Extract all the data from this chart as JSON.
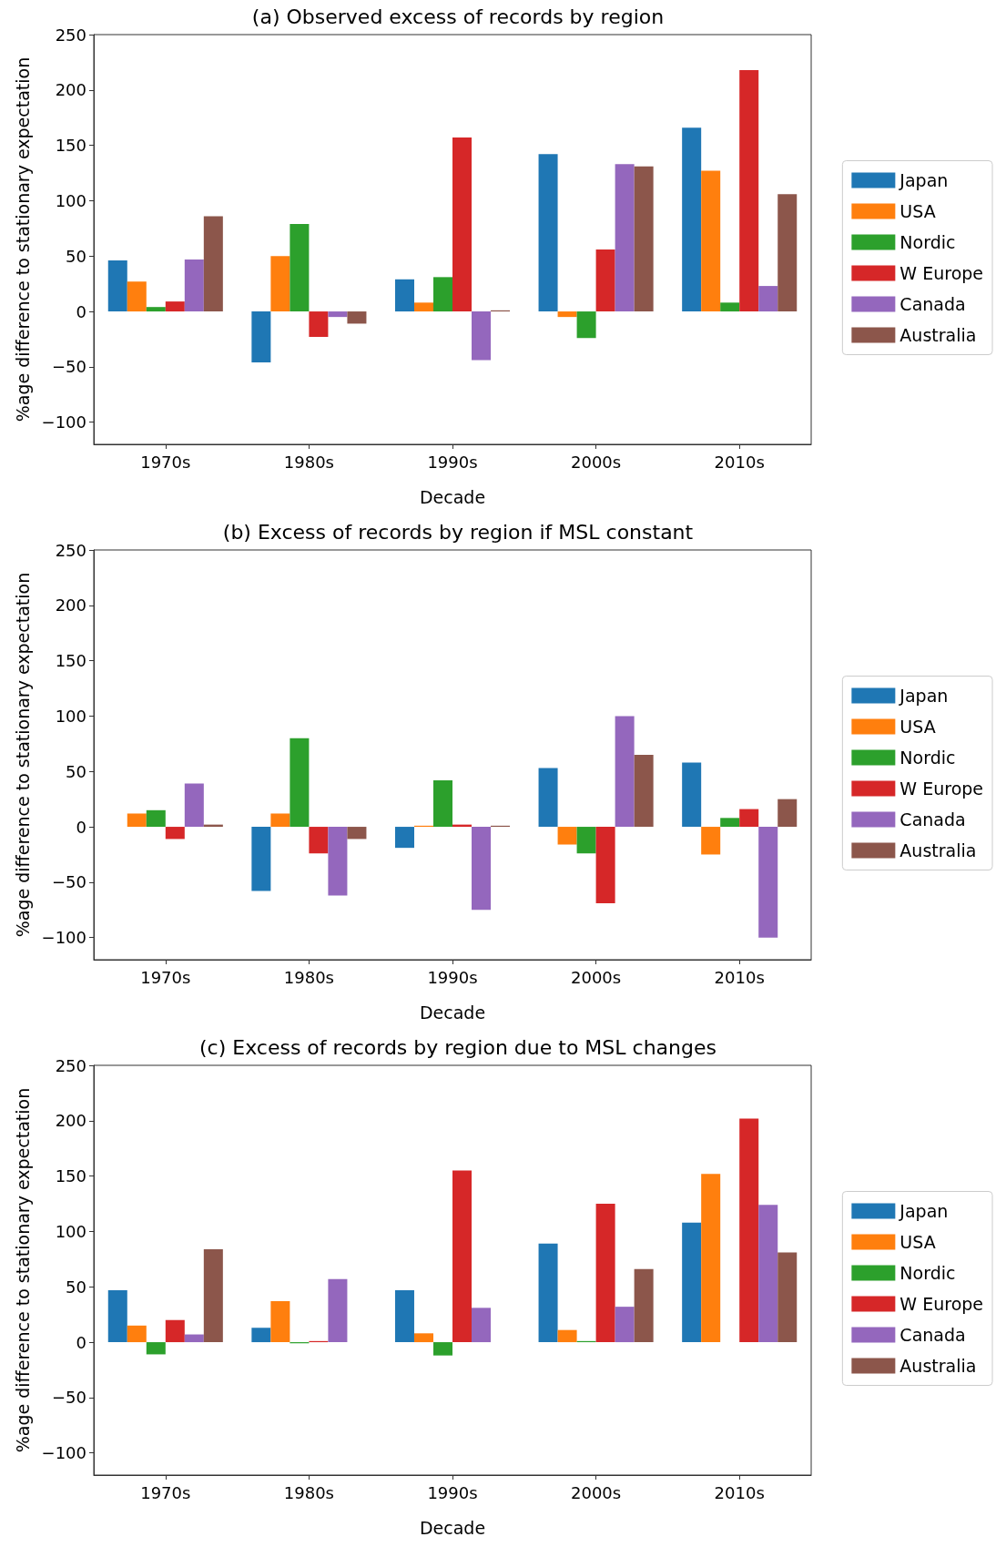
{
  "chart_data": [
    {
      "type": "bar",
      "title": "(a) Observed excess of records by region",
      "xlabel": "Decade",
      "ylabel": "%age difference to stationary expectation",
      "categories": [
        "1970s",
        "1980s",
        "1990s",
        "2000s",
        "2010s"
      ],
      "ylim": [
        -120,
        250
      ],
      "yticks": [
        -100,
        -50,
        0,
        50,
        100,
        150,
        200,
        250
      ],
      "legend": "right",
      "series": [
        {
          "name": "Japan",
          "color": "#1f77b4",
          "values": [
            46,
            -46,
            29,
            142,
            166
          ]
        },
        {
          "name": "USA",
          "color": "#ff7f0e",
          "values": [
            27,
            50,
            8,
            -5,
            127
          ]
        },
        {
          "name": "Nordic",
          "color": "#2ca02c",
          "values": [
            4,
            79,
            31,
            -24,
            8
          ]
        },
        {
          "name": "W Europe",
          "color": "#d62728",
          "values": [
            9,
            -23,
            157,
            56,
            218
          ]
        },
        {
          "name": "Canada",
          "color": "#9467bd",
          "values": [
            47,
            -5,
            -44,
            133,
            23
          ]
        },
        {
          "name": "Australia",
          "color": "#8c564b",
          "values": [
            86,
            -11,
            1,
            131,
            106
          ]
        }
      ]
    },
    {
      "type": "bar",
      "title": "(b) Excess of records by region if MSL constant",
      "xlabel": "Decade",
      "ylabel": "%age difference to stationary expectation",
      "categories": [
        "1970s",
        "1980s",
        "1990s",
        "2000s",
        "2010s"
      ],
      "ylim": [
        -120,
        250
      ],
      "yticks": [
        -100,
        -50,
        0,
        50,
        100,
        150,
        200,
        250
      ],
      "legend": "right",
      "series": [
        {
          "name": "Japan",
          "color": "#1f77b4",
          "values": [
            0,
            -58,
            -19,
            53,
            58
          ]
        },
        {
          "name": "USA",
          "color": "#ff7f0e",
          "values": [
            12,
            12,
            1,
            -16,
            -25
          ]
        },
        {
          "name": "Nordic",
          "color": "#2ca02c",
          "values": [
            15,
            80,
            42,
            -24,
            8
          ]
        },
        {
          "name": "W Europe",
          "color": "#d62728",
          "values": [
            -11,
            -24,
            2,
            -69,
            16
          ]
        },
        {
          "name": "Canada",
          "color": "#9467bd",
          "values": [
            39,
            -62,
            -75,
            100,
            -100
          ]
        },
        {
          "name": "Australia",
          "color": "#8c564b",
          "values": [
            2,
            -11,
            1,
            65,
            25
          ]
        }
      ]
    },
    {
      "type": "bar",
      "title": "(c) Excess of records by region due to MSL changes",
      "xlabel": "Decade",
      "ylabel": "%age difference to stationary expectation",
      "categories": [
        "1970s",
        "1980s",
        "1990s",
        "2000s",
        "2010s"
      ],
      "ylim": [
        -120,
        250
      ],
      "yticks": [
        -100,
        -50,
        0,
        50,
        100,
        150,
        200,
        250
      ],
      "legend": "right",
      "series": [
        {
          "name": "Japan",
          "color": "#1f77b4",
          "values": [
            47,
            13,
            47,
            89,
            108
          ]
        },
        {
          "name": "USA",
          "color": "#ff7f0e",
          "values": [
            15,
            37,
            8,
            11,
            152
          ]
        },
        {
          "name": "Nordic",
          "color": "#2ca02c",
          "values": [
            -11,
            -1,
            -12,
            1,
            0
          ]
        },
        {
          "name": "W Europe",
          "color": "#d62728",
          "values": [
            20,
            1,
            155,
            125,
            202
          ]
        },
        {
          "name": "Canada",
          "color": "#9467bd",
          "values": [
            7,
            57,
            31,
            32,
            124
          ]
        },
        {
          "name": "Australia",
          "color": "#8c564b",
          "values": [
            84,
            0,
            0,
            66,
            81
          ]
        }
      ]
    }
  ]
}
